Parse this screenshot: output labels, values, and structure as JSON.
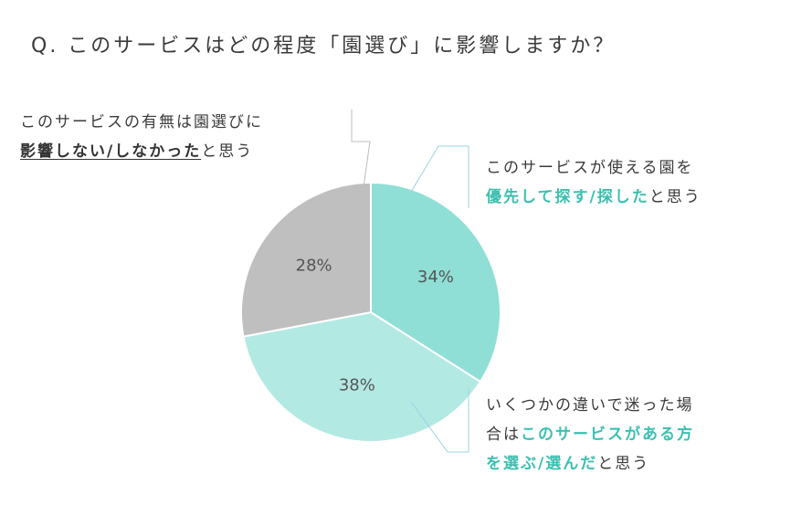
{
  "title": "Q. このサービスはどの程度「園選び」に影響しますか？",
  "labels": {
    "gray": {
      "line1": "このサービスの有無は園選びに",
      "line2_bold": "影響しない/しなかった",
      "line2_rest": "と思う"
    },
    "teal": {
      "line1": "このサービスが使える園を",
      "line2_bold": "優先して探す/探した",
      "line2_rest": "と思う"
    },
    "light": {
      "line1": "いくつかの違いで迷った場",
      "line2_plain": "合は",
      "line2_bold": "このサービスがある方",
      "line3_bold": "を選ぶ/選んだ",
      "line3_rest": "と思う"
    }
  },
  "colors": {
    "teal": "#8fdfd6",
    "light_teal": "#b3e9e3",
    "gray": "#bfbfbf",
    "accent_text": "#3dbfb0",
    "leader": "#9bd3e0"
  },
  "chart_data": {
    "type": "pie",
    "title": "Q. このサービスはどの程度「園選び」に影響しますか？",
    "slices": [
      {
        "label": "このサービスが使える園を優先して探す/探したと思う",
        "value": 34,
        "display": "34%",
        "color": "#8fdfd6"
      },
      {
        "label": "いくつかの違いで迷った場合はこのサービスがある方を選ぶ/選んだと思う",
        "value": 38,
        "display": "38%",
        "color": "#b3e9e3"
      },
      {
        "label": "このサービスの有無は園選びに影響しない/しなかったと思う",
        "value": 28,
        "display": "28%",
        "color": "#bfbfbf"
      }
    ],
    "start": "top",
    "direction": "clockwise"
  }
}
